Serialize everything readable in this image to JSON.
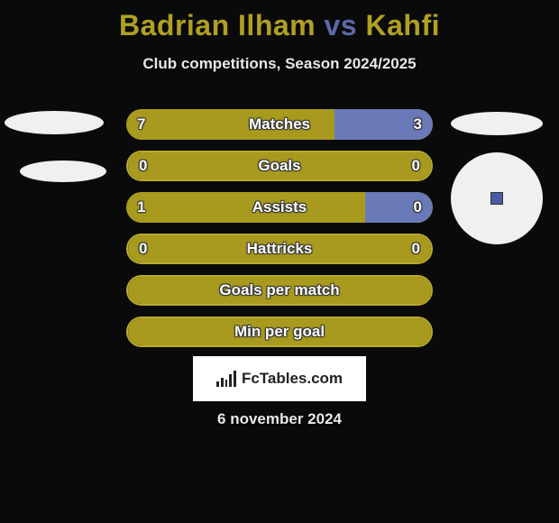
{
  "title": {
    "player1": "Badrian Ilham",
    "vs": "vs",
    "player2": "Kahfi"
  },
  "subtitle": "Club competitions, Season 2024/2025",
  "colors": {
    "title_p1": "#b0a022",
    "title_vs": "#5a6aa8",
    "title_p2": "#b0a022",
    "bar_olive": "#a89a1e",
    "bar_olive_light": "#b8aa2e",
    "bar_blue": "#6a7ab8",
    "background": "#0a0a0a"
  },
  "rows": [
    {
      "label": "Matches",
      "left_val": "7",
      "right_val": "3",
      "left_pct": 68,
      "right_pct": 32,
      "left_color": "#a89a1e",
      "right_color": "#6a7ab8",
      "border": false
    },
    {
      "label": "Goals",
      "left_val": "0",
      "right_val": "0",
      "left_pct": 100,
      "right_pct": 0,
      "left_color": "#a89a1e",
      "right_color": "#a89a1e",
      "border": true,
      "border_color": "#b8aa2e"
    },
    {
      "label": "Assists",
      "left_val": "1",
      "right_val": "0",
      "left_pct": 78,
      "right_pct": 22,
      "left_color": "#a89a1e",
      "right_color": "#6a7ab8",
      "border": false
    },
    {
      "label": "Hattricks",
      "left_val": "0",
      "right_val": "0",
      "left_pct": 100,
      "right_pct": 0,
      "left_color": "#a89a1e",
      "right_color": "#a89a1e",
      "border": true,
      "border_color": "#b8aa2e"
    },
    {
      "label": "Goals per match",
      "left_val": "",
      "right_val": "",
      "left_pct": 100,
      "right_pct": 0,
      "left_color": "#a89a1e",
      "right_color": "#a89a1e",
      "border": true,
      "border_color": "#b8aa2e"
    },
    {
      "label": "Min per goal",
      "left_val": "",
      "right_val": "",
      "left_pct": 100,
      "right_pct": 0,
      "left_color": "#a89a1e",
      "right_color": "#a89a1e",
      "border": true,
      "border_color": "#b8aa2e"
    }
  ],
  "branding": "FcTables.com",
  "date": "6 november 2024"
}
